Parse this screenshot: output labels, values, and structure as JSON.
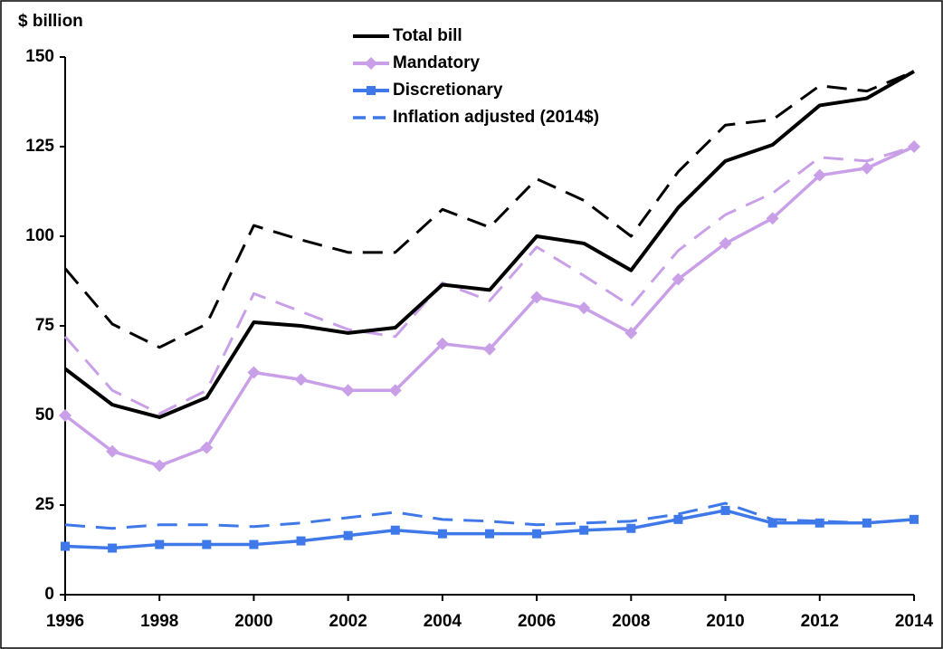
{
  "chart_data": {
    "type": "line",
    "y_axis_label": "$ billion",
    "x": [
      1996,
      1997,
      1998,
      1999,
      2000,
      2001,
      2002,
      2003,
      2004,
      2005,
      2006,
      2007,
      2008,
      2009,
      2010,
      2011,
      2012,
      2013,
      2014
    ],
    "xlim": [
      1996,
      2014
    ],
    "xticks": [
      1996,
      1998,
      2000,
      2002,
      2004,
      2006,
      2008,
      2010,
      2012,
      2014
    ],
    "ylim": [
      0,
      150
    ],
    "yticks": [
      0,
      25,
      50,
      75,
      100,
      125,
      150
    ],
    "legend_dashed_label": "Inflation adjusted (2014$)",
    "series": [
      {
        "color": "#000000",
        "style": "dashed",
        "values": [
          91,
          75.5,
          69,
          75.5,
          103,
          99,
          95.5,
          95.5,
          107.5,
          102.5,
          116,
          110,
          100,
          118,
          131,
          132.5,
          142,
          140.5,
          146
        ]
      },
      {
        "color": "#c9a0e8",
        "style": "dashed",
        "values": [
          72,
          57,
          50.5,
          57,
          84,
          79,
          74,
          72,
          87,
          82,
          97,
          89,
          80.5,
          96,
          106,
          112,
          122,
          121,
          125
        ]
      },
      {
        "color": "#3f78e8",
        "style": "dashed",
        "values": [
          19.5,
          18.5,
          19.5,
          19.5,
          19,
          20,
          21.5,
          23,
          21,
          20.5,
          19.5,
          20,
          20.5,
          22.5,
          25.5,
          21,
          20.5,
          20,
          21
        ]
      },
      {
        "name": "Total bill",
        "color": "#000000",
        "style": "solid",
        "values": [
          63,
          53,
          49.5,
          55,
          76,
          75,
          73,
          74.5,
          86.5,
          85,
          100,
          98,
          90.5,
          108,
          121,
          125.5,
          136.5,
          138.5,
          146
        ]
      },
      {
        "name": "Mandatory",
        "color": "#c9a0e8",
        "style": "solid",
        "marker": "diamond",
        "values": [
          50,
          40,
          36,
          41,
          62,
          60,
          57,
          57,
          70,
          68.5,
          83,
          80,
          73,
          88,
          98,
          105,
          117,
          119,
          125
        ]
      },
      {
        "name": "Discretionary",
        "color": "#3f78e8",
        "style": "solid",
        "marker": "square",
        "values": [
          13.5,
          13,
          14,
          14,
          14,
          15,
          16.5,
          18,
          17,
          17,
          17,
          18,
          18.5,
          21,
          23.5,
          20,
          20,
          20,
          21
        ]
      }
    ]
  }
}
